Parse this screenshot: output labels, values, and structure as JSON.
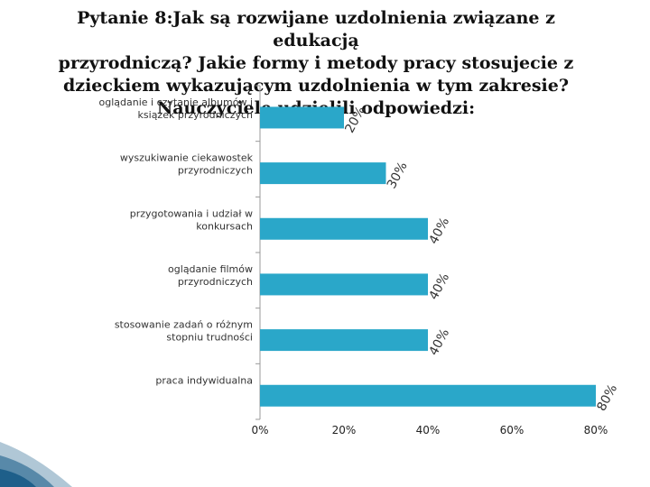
{
  "title_lines": [
    "Pytanie 8:Jak są rozwijane uzdolnienia związane z edukacją",
    "przyrodniczą? Jakie formy i metody pracy stosujecie z",
    "dzieckiem wykazującym uzdolnienia w tym zakresie?",
    "Nauczyciele udzielili odpowiedzi:"
  ],
  "colors": {
    "bar": "#2aa7c9",
    "axis": "#999999",
    "text": "#333333",
    "deco": "#1e5f8a"
  },
  "chart_data": {
    "type": "bar",
    "orientation": "horizontal",
    "title": "Pytanie 8:Jak są rozwijane uzdolnienia związane z edukacją przyrodniczą? Jakie formy i metody pracy stosujecie z dzieckiem wykazującym uzdolnienia w tym zakresie? Nauczyciele udzielili odpowiedzi:",
    "categories": [
      [
        "oglądanie i czytanie albumów i",
        "książek przyrodniczych"
      ],
      [
        "wyszukiwanie ciekawostek",
        "przyrodniczych"
      ],
      [
        "przygotowania i udział w",
        "konkursach"
      ],
      [
        "oglądanie filmów",
        "przyrodniczych"
      ],
      [
        "stosowanie zadań o różnym",
        "stopniu trudności"
      ],
      [
        "praca indywidualna"
      ]
    ],
    "values": [
      20,
      30,
      40,
      40,
      40,
      80
    ],
    "value_labels": [
      "20%",
      "30%",
      "40%",
      "40%",
      "40%",
      "80%"
    ],
    "xlim": [
      0,
      80
    ],
    "x_ticks": [
      "0%",
      "20%",
      "40%",
      "60%",
      "80%"
    ],
    "legend": "none",
    "grid": false
  }
}
